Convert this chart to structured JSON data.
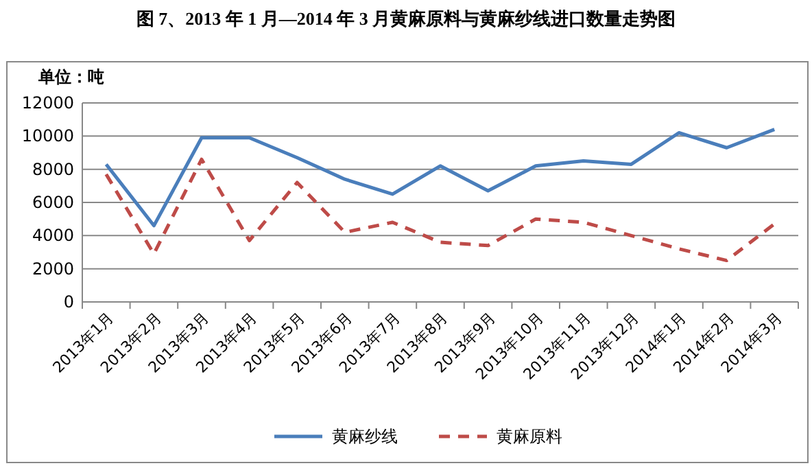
{
  "chart_data": {
    "type": "line",
    "title": "图 7、2013 年 1 月—2014 年 3 月黄麻原料与黄麻纱线进口数量走势图",
    "ylabel": "单位：吨",
    "categories": [
      "2013年1月",
      "2013年2月",
      "2013年3月",
      "2013年4月",
      "2013年5月",
      "2013年6月",
      "2013年7月",
      "2013年8月",
      "2013年9月",
      "2013年10月",
      "2013年11月",
      "2013年12月",
      "2014年1月",
      "2014年2月",
      "2014年3月"
    ],
    "series": [
      {
        "name": "黄麻纱线",
        "color": "#4a7ebb",
        "line_style": "solid",
        "values": [
          8300,
          4600,
          9900,
          9900,
          8700,
          7400,
          6500,
          8200,
          6700,
          8200,
          8500,
          8300,
          10200,
          9300,
          10400
        ]
      },
      {
        "name": "黄麻原料",
        "color": "#be4b48",
        "line_style": "dashed",
        "values": [
          7700,
          2900,
          8600,
          3700,
          7200,
          4200,
          4800,
          3600,
          3400,
          5000,
          4800,
          4000,
          3200,
          2500,
          4700
        ]
      }
    ],
    "ylim": [
      0,
      12000
    ],
    "yticks": [
      0,
      2000,
      4000,
      6000,
      8000,
      10000,
      12000
    ],
    "grid": "y",
    "legend": "bottom",
    "marker": "none"
  }
}
